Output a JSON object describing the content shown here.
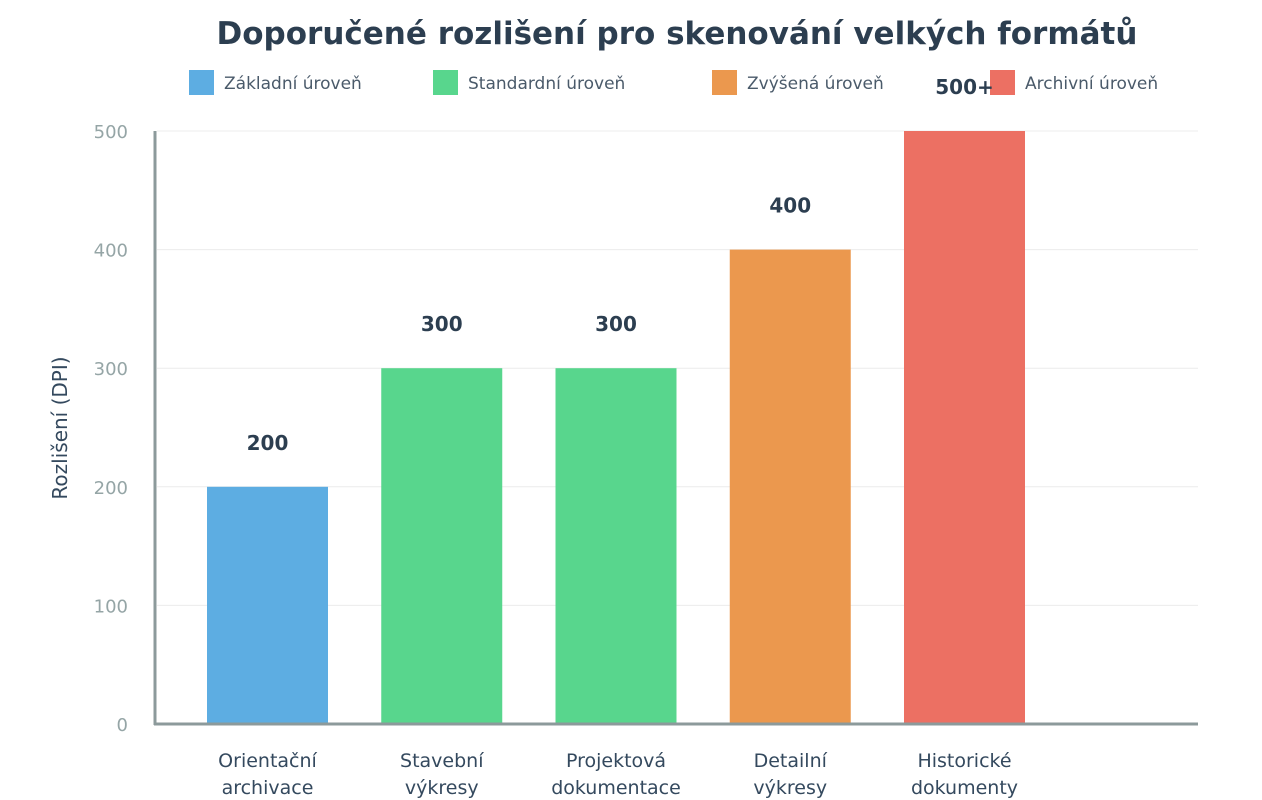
{
  "chart_data": {
    "type": "bar",
    "title": "Doporučené rozlišení pro skenování velkých formátů",
    "xlabel": "",
    "ylabel": "Rozlišení (DPI)",
    "ylim": [
      0,
      500
    ],
    "yticks": [
      0,
      100,
      200,
      300,
      400,
      500
    ],
    "grid": true,
    "legend_position": "top",
    "categories": [
      [
        "Orientační",
        "archivace"
      ],
      [
        "Stavební",
        "výkresy"
      ],
      [
        "Projektová",
        "dokumentace"
      ],
      [
        "Detailní",
        "výkresy"
      ],
      [
        "Historické",
        "dokumenty"
      ]
    ],
    "values": [
      200,
      300,
      300,
      400,
      500
    ],
    "value_labels": [
      "200",
      "300",
      "300",
      "400",
      "500+"
    ],
    "levels": [
      0,
      1,
      1,
      2,
      3
    ],
    "legend": [
      {
        "label": "Základní úroveň",
        "color": "#5dade2"
      },
      {
        "label": "Standardní úroveň",
        "color": "#58d68d"
      },
      {
        "label": "Zvýšená úroveň",
        "color": "#eb984e"
      },
      {
        "label": "Archivní úroveň",
        "color": "#ec7063"
      }
    ]
  }
}
